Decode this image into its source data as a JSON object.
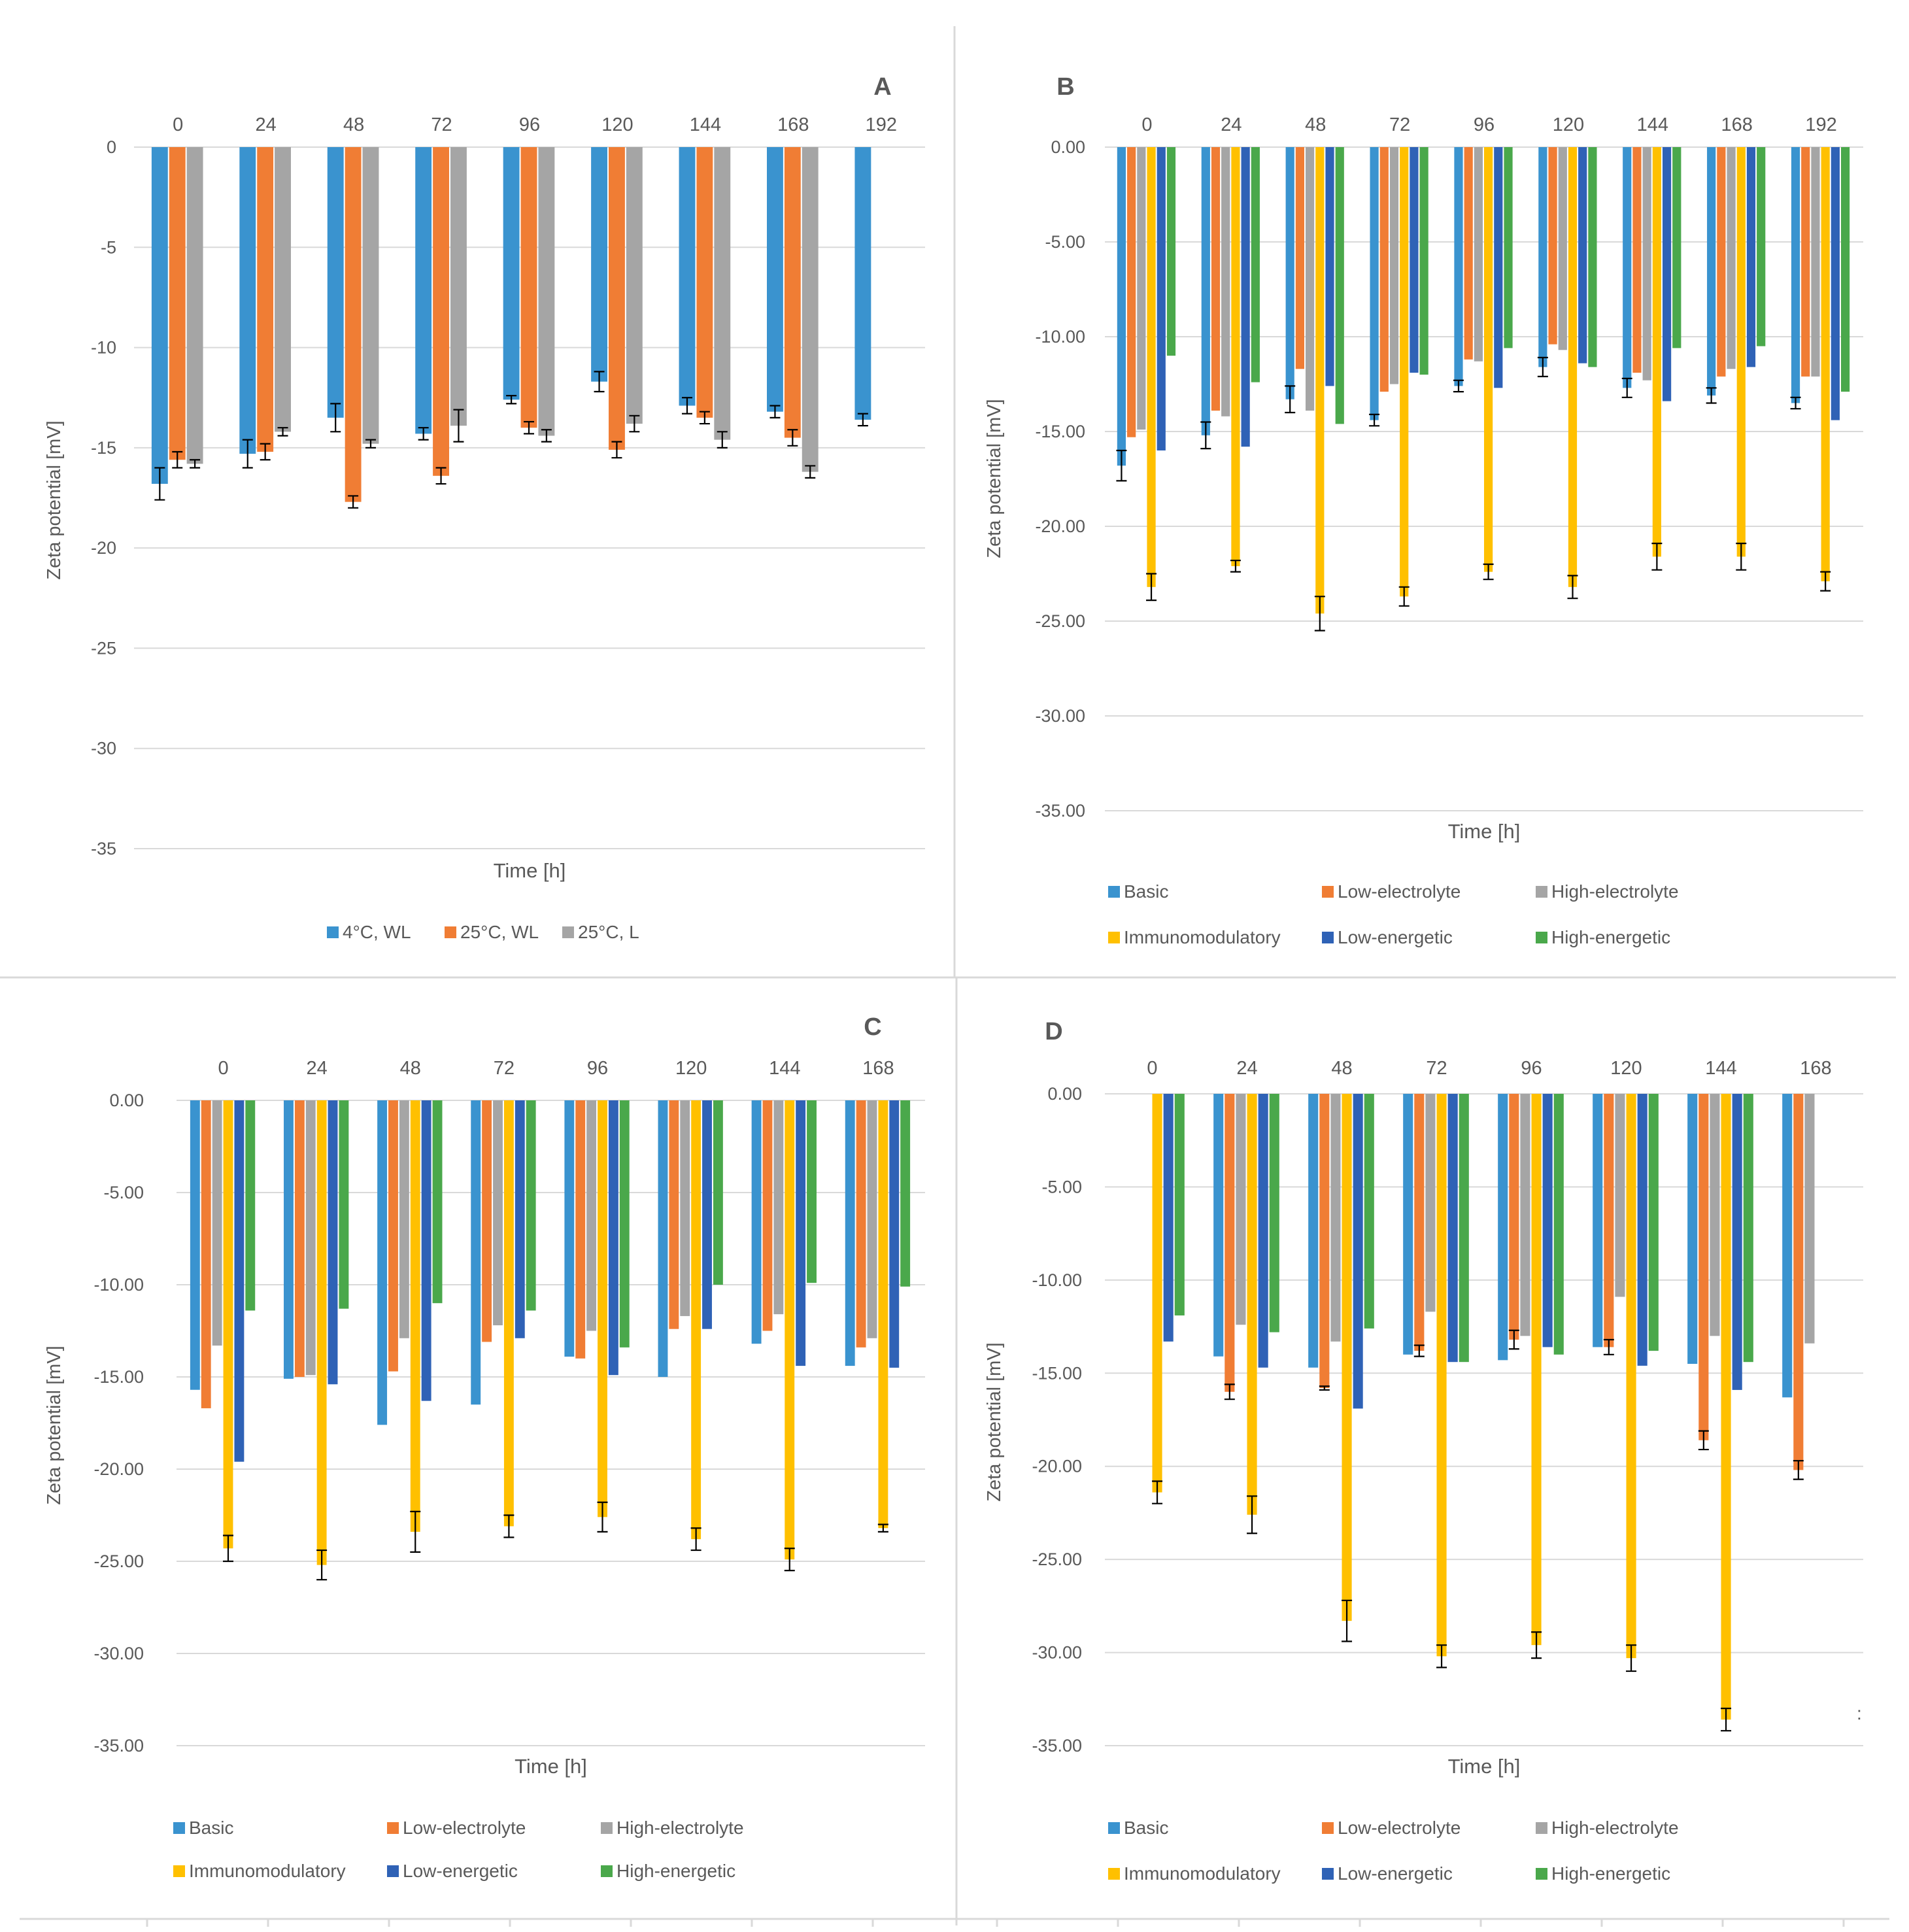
{
  "colors": {
    "blue": "#3a93cf",
    "orange": "#f07d34",
    "gray": "#a5a5a5",
    "yellow": "#ffc000",
    "darkblue": "#2f62b6",
    "green": "#4aa84b",
    "grid": "#d9d9d9",
    "text": "#595959",
    "errorbar": "#000000"
  },
  "chart_data": [
    {
      "panel": "A",
      "type": "bar",
      "title": "A",
      "xlabel": "Time [h]",
      "ylabel": "Zeta potential [mV]",
      "ylim": [
        -35,
        0
      ],
      "yticks": [
        "0",
        "-5",
        "-10",
        "-15",
        "-20",
        "-25",
        "-30",
        "-35"
      ],
      "categories": [
        "0",
        "24",
        "48",
        "72",
        "96",
        "120",
        "144",
        "168",
        "192"
      ],
      "legend_position": "bottom",
      "series": [
        {
          "name": "4°C, WL",
          "color": "blue",
          "values": [
            -16.8,
            -15.3,
            -13.5,
            -14.3,
            -12.6,
            -11.7,
            -12.9,
            -13.2,
            -13.6
          ],
          "errors": [
            0.8,
            0.7,
            0.7,
            0.3,
            0.2,
            0.5,
            0.4,
            0.3,
            0.3
          ]
        },
        {
          "name": "25°C, WL",
          "color": "orange",
          "values": [
            -15.6,
            -15.2,
            -17.7,
            -16.4,
            -14.0,
            -15.1,
            -13.5,
            -14.5,
            null
          ],
          "errors": [
            0.4,
            0.4,
            0.3,
            0.4,
            0.3,
            0.4,
            0.3,
            0.4,
            null
          ]
        },
        {
          "name": "25°C, L",
          "color": "gray",
          "values": [
            -15.8,
            -14.2,
            -14.8,
            -13.9,
            -14.4,
            -13.8,
            -14.6,
            -16.2,
            null
          ],
          "errors": [
            0.2,
            0.2,
            0.2,
            0.8,
            0.3,
            0.4,
            0.4,
            0.3,
            null
          ]
        }
      ]
    },
    {
      "panel": "B",
      "type": "bar",
      "title": "B",
      "xlabel": "Time [h]",
      "ylabel": "Zeta potential [mV]",
      "ylim": [
        -35,
        0
      ],
      "yticks": [
        "0.00",
        "-5.00",
        "-10.00",
        "-15.00",
        "-20.00",
        "-25.00",
        "-30.00",
        "-35.00"
      ],
      "categories": [
        "0",
        "24",
        "48",
        "72",
        "96",
        "120",
        "144",
        "168",
        "192"
      ],
      "legend_position": "bottom",
      "series": [
        {
          "name": "Basic",
          "color": "blue",
          "values": [
            -16.8,
            -15.2,
            -13.3,
            -14.4,
            -12.6,
            -11.6,
            -12.7,
            -13.1,
            -13.5
          ],
          "errors": [
            0.8,
            0.7,
            0.7,
            0.3,
            0.3,
            0.5,
            0.5,
            0.4,
            0.3
          ]
        },
        {
          "name": "Low-electrolyte",
          "color": "orange",
          "values": [
            -15.3,
            -13.9,
            -11.7,
            -12.9,
            -11.2,
            -10.4,
            -11.9,
            -12.1,
            -12.1
          ]
        },
        {
          "name": "High-electrolyte",
          "color": "gray",
          "values": [
            -14.9,
            -14.2,
            -13.9,
            -12.5,
            -11.3,
            -10.7,
            -12.3,
            -11.7,
            -12.1
          ]
        },
        {
          "name": "Immunomodulatory",
          "color": "yellow",
          "values": [
            -23.2,
            -22.1,
            -24.6,
            -23.7,
            -22.4,
            -23.2,
            -21.6,
            -21.6,
            -22.9
          ],
          "errors": [
            0.7,
            0.3,
            0.9,
            0.5,
            0.4,
            0.6,
            0.7,
            0.7,
            0.5
          ]
        },
        {
          "name": "Low-energetic",
          "color": "darkblue",
          "values": [
            -16.0,
            -15.8,
            -12.6,
            -11.9,
            -12.7,
            -11.4,
            -13.4,
            -11.6,
            -14.4
          ]
        },
        {
          "name": "High-energetic",
          "color": "green",
          "values": [
            -11.0,
            -12.4,
            -14.6,
            -12.0,
            -10.6,
            -11.6,
            -10.6,
            -10.5,
            -12.9
          ]
        }
      ]
    },
    {
      "panel": "C",
      "type": "bar",
      "title": "C",
      "xlabel": "Time [h]",
      "ylabel": "Zeta potential [mV]",
      "ylim": [
        -35,
        0
      ],
      "yticks": [
        "0.00",
        "-5.00",
        "-10.00",
        "-15.00",
        "-20.00",
        "-25.00",
        "-30.00",
        "-35.00"
      ],
      "categories": [
        "0",
        "24",
        "48",
        "72",
        "96",
        "120",
        "144",
        "168"
      ],
      "legend_position": "bottom",
      "series": [
        {
          "name": "Basic",
          "color": "blue",
          "values": [
            -15.7,
            -15.1,
            -17.6,
            -16.5,
            -13.9,
            -15.0,
            -13.2,
            -14.4
          ]
        },
        {
          "name": "Low-electrolyte",
          "color": "orange",
          "values": [
            -16.7,
            -15.0,
            -14.7,
            -13.1,
            -14.0,
            -12.4,
            -12.5,
            -13.4
          ]
        },
        {
          "name": "High-electrolyte",
          "color": "gray",
          "values": [
            -13.3,
            -14.9,
            -12.9,
            -12.2,
            -12.5,
            -11.7,
            -11.6,
            -12.9
          ]
        },
        {
          "name": "Immunomodulatory",
          "color": "yellow",
          "values": [
            -24.3,
            -25.2,
            -23.4,
            -23.1,
            -22.6,
            -23.8,
            -24.9,
            -23.2
          ],
          "errors": [
            0.7,
            0.8,
            1.1,
            0.6,
            0.8,
            0.6,
            0.6,
            0.2
          ]
        },
        {
          "name": "Low-energetic",
          "color": "darkblue",
          "values": [
            -19.6,
            -15.4,
            -16.3,
            -12.9,
            -14.9,
            -12.4,
            -14.4,
            -14.5
          ]
        },
        {
          "name": "High-energetic",
          "color": "green",
          "values": [
            -11.4,
            -11.3,
            -11.0,
            -11.4,
            -13.4,
            -10.0,
            -9.9,
            -10.1
          ]
        }
      ]
    },
    {
      "panel": "D",
      "type": "bar",
      "title": "D",
      "xlabel": "Time [h]",
      "ylabel": "Zeta potential [mV]",
      "ylim": [
        -35,
        0
      ],
      "yticks": [
        "0.00",
        "-5.00",
        "-10.00",
        "-15.00",
        "-20.00",
        "-25.00",
        "-30.00",
        "-35.00"
      ],
      "categories": [
        "0",
        "24",
        "48",
        "72",
        "96",
        "120",
        "144",
        "168"
      ],
      "legend_position": "bottom",
      "legend_stray_mark": ":",
      "series": [
        {
          "name": "Basic",
          "color": "blue",
          "values": [
            null,
            -14.1,
            -14.7,
            -14.0,
            -14.3,
            -13.6,
            -14.5,
            -16.3
          ]
        },
        {
          "name": "Low-electrolyte",
          "color": "orange",
          "values": [
            null,
            -16.0,
            -15.8,
            -13.8,
            -13.2,
            -13.6,
            -18.6,
            -20.2
          ],
          "errors": [
            null,
            0.4,
            0.1,
            0.3,
            0.5,
            0.4,
            0.5,
            0.5
          ]
        },
        {
          "name": "High-electrolyte",
          "color": "gray",
          "values": [
            null,
            -12.4,
            -13.3,
            -11.7,
            -13.0,
            -10.9,
            -13.0,
            -13.4
          ]
        },
        {
          "name": "Immunomodulatory",
          "color": "yellow",
          "values": [
            -21.4,
            -22.6,
            -28.3,
            -30.2,
            -29.6,
            -30.3,
            -33.6,
            null
          ],
          "errors": [
            0.6,
            1.0,
            1.1,
            0.6,
            0.7,
            0.7,
            0.6,
            null
          ]
        },
        {
          "name": "Low-energetic",
          "color": "darkblue",
          "values": [
            -13.3,
            -14.7,
            -16.9,
            -14.4,
            -13.6,
            -14.6,
            -15.9,
            null
          ]
        },
        {
          "name": "High-energetic",
          "color": "green",
          "values": [
            -11.9,
            -12.8,
            -12.6,
            -14.4,
            -14.0,
            -13.8,
            -14.4,
            null
          ]
        }
      ]
    }
  ]
}
